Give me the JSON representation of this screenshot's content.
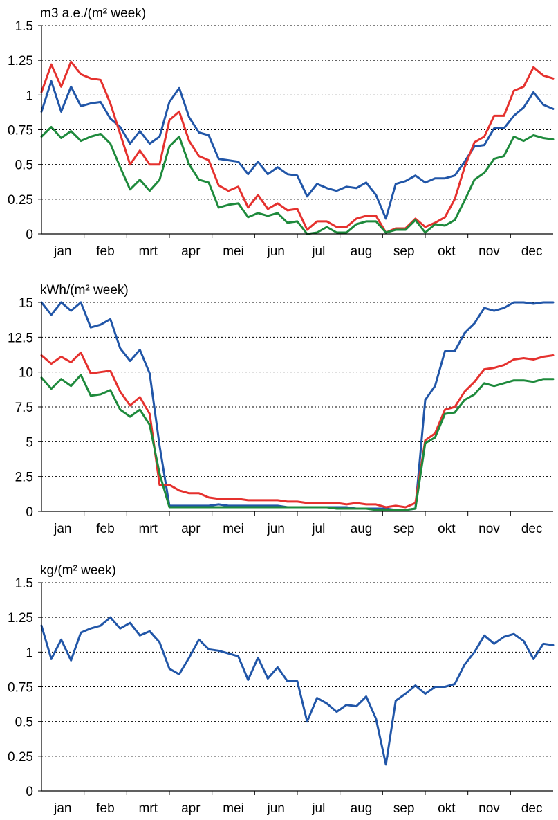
{
  "colors": {
    "blue": "#2156a8",
    "red": "#e5312e",
    "green": "#1e8a3c",
    "axis": "#000000",
    "grid": "#000000"
  },
  "chart_data": [
    {
      "type": "line",
      "ylabel": "m3 a.e./(m² week)",
      "ylim": [
        0,
        1.5
      ],
      "yticks": [
        "0",
        "0.25",
        "0.5",
        "0.75",
        "1",
        "1.25",
        "1.5"
      ],
      "ytick_values": [
        0,
        0.25,
        0.5,
        0.75,
        1,
        1.25,
        1.5
      ],
      "month_labels": [
        "jan",
        "feb",
        "mrt",
        "apr",
        "mei",
        "jun",
        "jul",
        "aug",
        "sep",
        "okt",
        "nov",
        "dec"
      ],
      "grid": "horizontal-dotted",
      "x": [
        1,
        2,
        3,
        4,
        5,
        6,
        7,
        8,
        9,
        10,
        11,
        12,
        13,
        14,
        15,
        16,
        17,
        18,
        19,
        20,
        21,
        22,
        23,
        24,
        25,
        26,
        27,
        28,
        29,
        30,
        31,
        32,
        33,
        34,
        35,
        36,
        37,
        38,
        39,
        40,
        41,
        42,
        43,
        44,
        45,
        46,
        47,
        48,
        49,
        50,
        51,
        52,
        53
      ],
      "series": [
        {
          "color": "#2156a8",
          "values": [
            0.88,
            1.1,
            0.88,
            1.06,
            0.92,
            0.94,
            0.95,
            0.83,
            0.77,
            0.65,
            0.74,
            0.65,
            0.7,
            0.95,
            1.05,
            0.84,
            0.73,
            0.71,
            0.54,
            0.53,
            0.52,
            0.43,
            0.52,
            0.43,
            0.48,
            0.43,
            0.42,
            0.27,
            0.36,
            0.33,
            0.31,
            0.34,
            0.33,
            0.37,
            0.28,
            0.11,
            0.36,
            0.38,
            0.42,
            0.37,
            0.4,
            0.4,
            0.42,
            0.52,
            0.63,
            0.64,
            0.76,
            0.76,
            0.85,
            0.91,
            1.02,
            0.93,
            0.9
          ]
        },
        {
          "color": "#e5312e",
          "values": [
            1.02,
            1.22,
            1.06,
            1.24,
            1.15,
            1.12,
            1.11,
            0.94,
            0.72,
            0.5,
            0.6,
            0.5,
            0.5,
            0.82,
            0.88,
            0.67,
            0.56,
            0.53,
            0.35,
            0.31,
            0.34,
            0.19,
            0.28,
            0.18,
            0.22,
            0.17,
            0.18,
            0.03,
            0.09,
            0.09,
            0.05,
            0.05,
            0.11,
            0.13,
            0.13,
            0.01,
            0.04,
            0.04,
            0.11,
            0.05,
            0.08,
            0.12,
            0.25,
            0.48,
            0.66,
            0.7,
            0.85,
            0.85,
            1.03,
            1.06,
            1.2,
            1.14,
            1.12
          ]
        },
        {
          "color": "#1e8a3c",
          "values": [
            0.7,
            0.77,
            0.69,
            0.74,
            0.67,
            0.7,
            0.72,
            0.65,
            0.48,
            0.32,
            0.39,
            0.31,
            0.39,
            0.63,
            0.7,
            0.5,
            0.39,
            0.37,
            0.19,
            0.21,
            0.22,
            0.12,
            0.15,
            0.13,
            0.15,
            0.08,
            0.09,
            0.0,
            0.01,
            0.05,
            0.01,
            0.01,
            0.07,
            0.09,
            0.09,
            0.01,
            0.03,
            0.03,
            0.1,
            0.01,
            0.07,
            0.06,
            0.1,
            0.24,
            0.39,
            0.44,
            0.54,
            0.56,
            0.7,
            0.67,
            0.71,
            0.69,
            0.68
          ]
        }
      ]
    },
    {
      "type": "line",
      "ylabel": "kWh/(m² week)",
      "ylim": [
        0,
        15
      ],
      "yticks": [
        "0",
        "2.5",
        "5",
        "7.5",
        "10",
        "12.5",
        "15"
      ],
      "ytick_values": [
        0,
        2.5,
        5,
        7.5,
        10,
        12.5,
        15
      ],
      "month_labels": [
        "jan",
        "feb",
        "mrt",
        "apr",
        "mei",
        "jun",
        "jul",
        "aug",
        "sep",
        "okt",
        "nov",
        "dec"
      ],
      "grid": "horizontal-dotted",
      "x": [
        1,
        2,
        3,
        4,
        5,
        6,
        7,
        8,
        9,
        10,
        11,
        12,
        13,
        14,
        15,
        16,
        17,
        18,
        19,
        20,
        21,
        22,
        23,
        24,
        25,
        26,
        27,
        28,
        29,
        30,
        31,
        32,
        33,
        34,
        35,
        36,
        37,
        38,
        39,
        40,
        41,
        42,
        43,
        44,
        45,
        46,
        47,
        48,
        49,
        50,
        51,
        52,
        53
      ],
      "series": [
        {
          "color": "#2156a8",
          "values": [
            15.1,
            14.1,
            15.2,
            14.4,
            15.6,
            13.2,
            13.4,
            13.8,
            11.7,
            10.8,
            11.6,
            9.9,
            4.7,
            0.4,
            0.4,
            0.4,
            0.4,
            0.4,
            0.5,
            0.4,
            0.4,
            0.4,
            0.4,
            0.4,
            0.4,
            0.3,
            0.3,
            0.3,
            0.3,
            0.3,
            0.3,
            0.3,
            0.2,
            0.2,
            0.2,
            0.2,
            0.1,
            0.1,
            0.2,
            8.0,
            9.0,
            11.5,
            11.5,
            12.8,
            13.5,
            14.6,
            14.4,
            14.6,
            15.0,
            15.2,
            14.9,
            15.2,
            15.1
          ]
        },
        {
          "color": "#e5312e",
          "values": [
            11.2,
            10.6,
            11.1,
            10.7,
            11.4,
            9.9,
            10.0,
            10.1,
            8.6,
            7.6,
            8.2,
            7.0,
            1.9,
            1.9,
            1.5,
            1.3,
            1.3,
            1.0,
            0.9,
            0.9,
            0.9,
            0.8,
            0.8,
            0.8,
            0.8,
            0.7,
            0.7,
            0.6,
            0.6,
            0.6,
            0.6,
            0.5,
            0.6,
            0.5,
            0.5,
            0.3,
            0.4,
            0.3,
            0.6,
            5.1,
            5.6,
            7.3,
            7.5,
            8.6,
            9.3,
            10.2,
            10.3,
            10.5,
            10.9,
            11.0,
            10.9,
            11.1,
            11.2
          ]
        },
        {
          "color": "#1e8a3c",
          "values": [
            9.6,
            8.8,
            9.5,
            9.0,
            9.8,
            8.3,
            8.4,
            8.7,
            7.3,
            6.8,
            7.3,
            6.2,
            2.7,
            0.3,
            0.3,
            0.3,
            0.3,
            0.3,
            0.3,
            0.3,
            0.3,
            0.3,
            0.3,
            0.3,
            0.3,
            0.3,
            0.3,
            0.3,
            0.3,
            0.3,
            0.2,
            0.2,
            0.2,
            0.2,
            0.1,
            0.1,
            0.1,
            0.1,
            0.2,
            4.9,
            5.3,
            7.0,
            7.1,
            8.0,
            8.4,
            9.2,
            9.0,
            9.2,
            9.4,
            9.4,
            9.3,
            9.5,
            9.5
          ]
        }
      ]
    },
    {
      "type": "line",
      "ylabel": "kg/(m² week)",
      "ylim": [
        0,
        1.5
      ],
      "yticks": [
        "0",
        "0.25",
        "0.5",
        "0.75",
        "1",
        "1.25",
        "1.5"
      ],
      "ytick_values": [
        0,
        0.25,
        0.5,
        0.75,
        1,
        1.25,
        1.5
      ],
      "month_labels": [
        "jan",
        "feb",
        "mrt",
        "apr",
        "mei",
        "jun",
        "jul",
        "aug",
        "sep",
        "okt",
        "nov",
        "dec"
      ],
      "grid": "horizontal-dotted",
      "x": [
        1,
        2,
        3,
        4,
        5,
        6,
        7,
        8,
        9,
        10,
        11,
        12,
        13,
        14,
        15,
        16,
        17,
        18,
        19,
        20,
        21,
        22,
        23,
        24,
        25,
        26,
        27,
        28,
        29,
        30,
        31,
        32,
        33,
        34,
        35,
        36,
        37,
        38,
        39,
        40,
        41,
        42,
        43,
        44,
        45,
        46,
        47,
        48,
        49,
        50,
        51,
        52,
        53
      ],
      "series": [
        {
          "color": "#2156a8",
          "values": [
            1.19,
            0.95,
            1.09,
            0.94,
            1.14,
            1.17,
            1.19,
            1.25,
            1.17,
            1.21,
            1.12,
            1.15,
            1.07,
            0.88,
            0.84,
            0.96,
            1.09,
            1.02,
            1.01,
            0.99,
            0.97,
            0.8,
            0.96,
            0.81,
            0.89,
            0.79,
            0.79,
            0.5,
            0.67,
            0.63,
            0.57,
            0.62,
            0.61,
            0.68,
            0.52,
            0.19,
            0.65,
            0.7,
            0.76,
            0.7,
            0.75,
            0.75,
            0.77,
            0.91,
            1.0,
            1.12,
            1.06,
            1.11,
            1.13,
            1.08,
            0.95,
            1.06,
            1.05
          ]
        }
      ]
    }
  ]
}
